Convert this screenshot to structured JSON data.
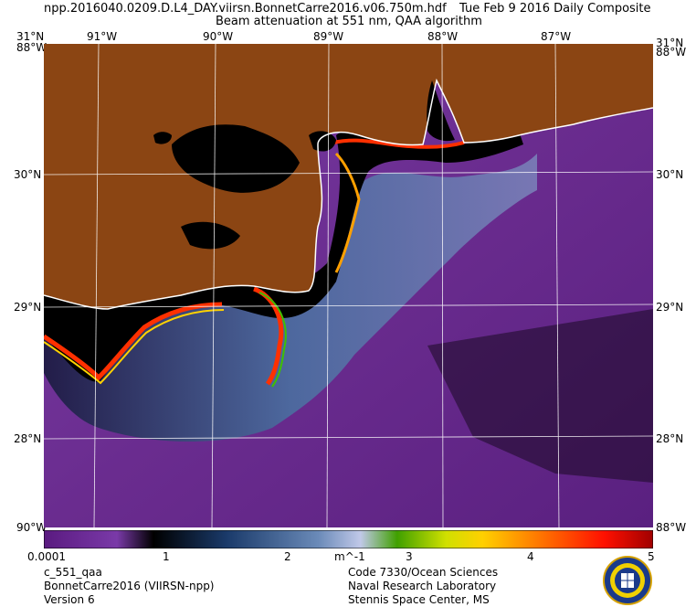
{
  "header": {
    "line1": "npp.2016040.0209.D.L4_DAY.viirsn.BonnetCarre2016.v06.750m.hdf",
    "line1_right": "Tue Feb  9 2016 Daily Composite",
    "line2": "Beam attenuation at 551 nm, QAA algorithm"
  },
  "map": {
    "lat_labels": [
      "31°N",
      "30°N",
      "29°N",
      "28°N"
    ],
    "lon_labels": [
      "91°W",
      "90°W",
      "89°W",
      "88°W",
      "87°W"
    ],
    "corner_lon_left": "88°W",
    "corner_lon_right": "88°W",
    "corner_lat_tl": "31°N",
    "corner_lat_tr": "31°N",
    "bottom_corner_left": "90°W",
    "bottom_corner_right": "88°W",
    "colors": {
      "land": "#8B4513",
      "ocean_low": "#6a2c8f",
      "ocean_mid": "#4a6fa0",
      "turbid": "#000000"
    }
  },
  "colorbar": {
    "ticks": [
      "0.0001",
      "1",
      "2",
      "3",
      "4",
      "5"
    ],
    "unit": "m^-1"
  },
  "footer": {
    "left1": "c_551_qaa",
    "left2": "BonnetCarre2016 (VIIRSN-npp)",
    "left3": "Version 6",
    "center1": "Code 7330/Ocean Sciences",
    "center2": "Naval Research Laboratory",
    "center3": "Stennis Space Center, MS"
  }
}
